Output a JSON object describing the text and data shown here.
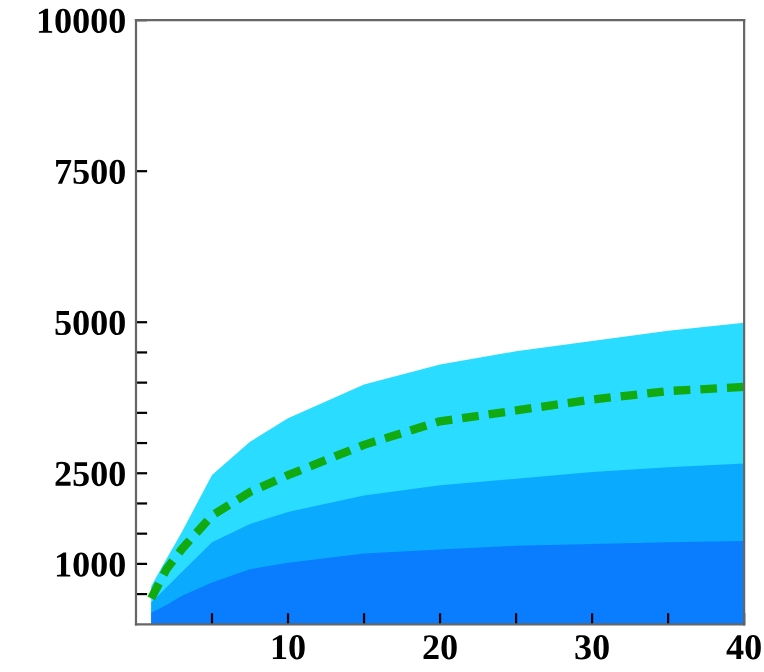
{
  "chart_data": {
    "type": "area",
    "x": [
      1,
      2,
      3,
      5,
      7.5,
      10,
      15,
      20,
      25,
      30,
      35,
      40
    ],
    "series": [
      {
        "color": "#2adcff",
        "values": [
          630,
          1080,
          1520,
          2470,
          3020,
          3410,
          3970,
          4300,
          4520,
          4690,
          4860,
          4990
        ]
      },
      {
        "color": "#0aaaff",
        "values": [
          360,
          610,
          860,
          1360,
          1660,
          1860,
          2130,
          2300,
          2410,
          2520,
          2600,
          2660
        ]
      },
      {
        "color": "#0a7dff",
        "values": [
          190,
          320,
          470,
          690,
          910,
          1020,
          1170,
          1240,
          1300,
          1330,
          1360,
          1380
        ]
      },
      {
        "type": "line",
        "color": "#11aa11",
        "line_style": "dashed",
        "values": [
          430,
          910,
          1240,
          1800,
          2190,
          2470,
          2970,
          3360,
          3540,
          3720,
          3860,
          3930
        ]
      }
    ],
    "xlim": [
      0,
      40
    ],
    "xticks": [
      {
        "value": 5,
        "label": null
      },
      10,
      {
        "value": 15,
        "label": null
      },
      20,
      {
        "value": 25,
        "label": null
      },
      30,
      {
        "value": 35,
        "label": null
      },
      40
    ],
    "ylim": [
      0,
      10000
    ],
    "yticks": [
      {
        "value": 500,
        "label": null
      },
      1000,
      {
        "value": 1500,
        "label": null
      },
      {
        "value": 2000,
        "label": null
      },
      2500,
      {
        "value": 3000,
        "label": null
      },
      {
        "value": 3500,
        "label": null
      },
      {
        "value": 4000,
        "label": null
      },
      {
        "value": 4500,
        "label": null
      },
      5000,
      7500,
      10000
    ],
    "grid": false
  }
}
